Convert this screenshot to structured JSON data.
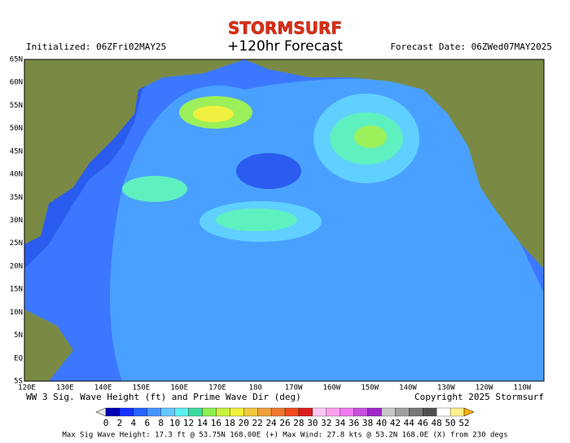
{
  "header": {
    "logo": "STORMSURF",
    "title": "+120hr Forecast",
    "initialized": "Initialized: 06ZFri02MAY25",
    "forecast_date": "Forecast Date: 06ZWed07MAY2025"
  },
  "map": {
    "lat_labels": [
      "65N",
      "60N",
      "55N",
      "50N",
      "45N",
      "40N",
      "35N",
      "30N",
      "25N",
      "20N",
      "15N",
      "10N",
      "5N",
      "EQ",
      "5S"
    ],
    "lon_labels": [
      "120E",
      "130E",
      "140E",
      "150E",
      "160E",
      "170E",
      "180",
      "170W",
      "160W",
      "150W",
      "140W",
      "130W",
      "120W",
      "110W"
    ]
  },
  "footer": {
    "description": "WW 3 Sig. Wave Height (ft) and Prime Wave Dir (deg)",
    "copyright": "Copyright 2025 Stormsurf",
    "scale": [
      0,
      2,
      4,
      6,
      8,
      10,
      12,
      14,
      16,
      18,
      20,
      22,
      24,
      26,
      28,
      30,
      32,
      34,
      36,
      38,
      40,
      42,
      44,
      46,
      48,
      50,
      52
    ],
    "stats": "Max Sig Wave Height: 17.3 ft @ 53.75N 168.00E (+)    Max Wind: 27.8 kts @ 53.2N 168.0E (X) from 230 degs"
  }
}
